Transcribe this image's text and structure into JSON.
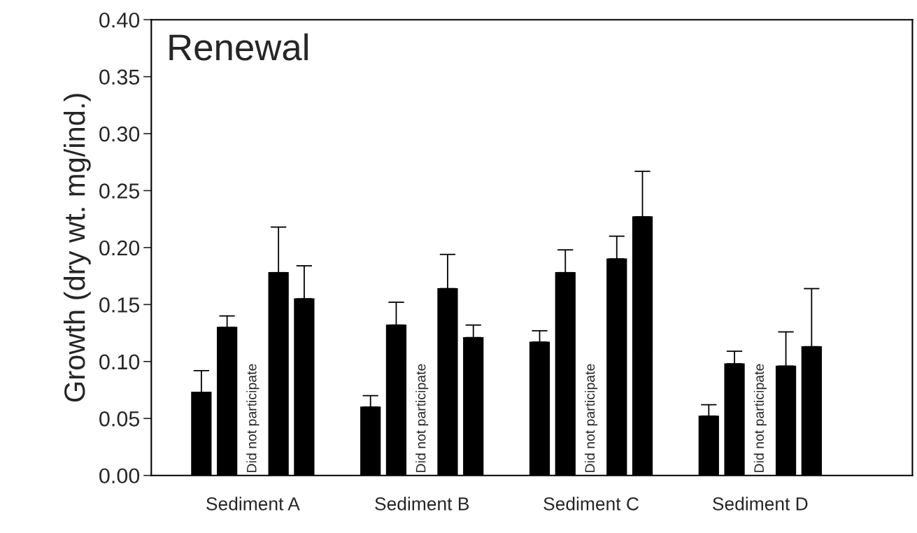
{
  "chart_data": {
    "type": "bar",
    "title": "Renewal",
    "ylabel": "Growth (dry wt. mg/ind.)",
    "categories": [
      "Sediment A",
      "Sediment B",
      "Sediment C",
      "Sediment D"
    ],
    "series": [
      {
        "color": "#000000",
        "values": [
          0.073,
          0.06,
          0.117,
          0.052
        ],
        "errors": [
          [
            0.073,
            0.092
          ],
          [
            0.06,
            0.07
          ],
          [
            0.117,
            0.127
          ],
          [
            0.052,
            0.062
          ]
        ]
      },
      {
        "color": "#000000",
        "values": [
          0.13,
          0.132,
          0.178,
          0.098
        ],
        "errors": [
          [
            0.13,
            0.14
          ],
          [
            0.132,
            0.152
          ],
          [
            0.178,
            0.198
          ],
          [
            0.098,
            0.109
          ]
        ]
      },
      {
        "values": [
          null,
          null,
          null,
          null
        ]
      },
      {
        "color": "#000000",
        "values": [
          0.178,
          0.164,
          0.19,
          0.096
        ],
        "errors": [
          [
            0.178,
            0.218
          ],
          [
            0.164,
            0.194
          ],
          [
            0.19,
            0.21
          ],
          [
            0.096,
            0.126
          ]
        ]
      },
      {
        "color": "#000000",
        "values": [
          0.155,
          0.121,
          0.227,
          0.113
        ],
        "errors": [
          [
            0.155,
            0.184
          ],
          [
            0.121,
            0.132
          ],
          [
            0.227,
            0.267
          ],
          [
            0.113,
            0.164
          ]
        ]
      }
    ],
    "annotations": [
      "Did not participate",
      "Did not participate",
      "Did not participate",
      "Did not participate"
    ],
    "ylim": [
      0,
      0.4
    ],
    "yticks": [
      {
        "value": 0,
        "label": "0.00"
      },
      {
        "value": 0.05,
        "label": "0.05"
      },
      {
        "value": 0.1,
        "label": "0.10"
      },
      {
        "value": 0.15,
        "label": "0.15"
      },
      {
        "value": 0.2,
        "label": "0.20"
      },
      {
        "value": 0.25,
        "label": "0.25"
      },
      {
        "value": 0.3,
        "label": "0.30"
      },
      {
        "value": 0.35,
        "label": "0.35"
      },
      {
        "value": 0.4,
        "label": "0.40"
      }
    ],
    "grid": false,
    "legend": false
  }
}
